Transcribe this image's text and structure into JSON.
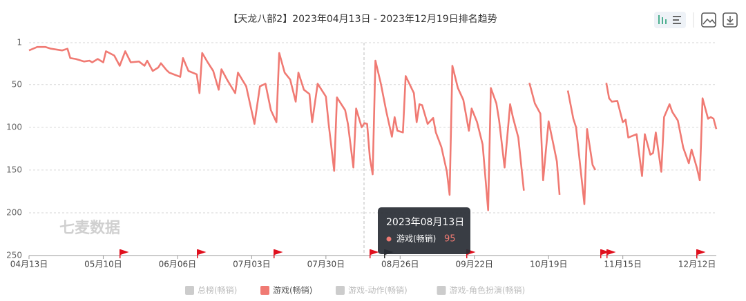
{
  "chart_data": {
    "type": "line",
    "title": "【天龙八部2】2023年04月13日 - 2023年12月19日排名趋势",
    "watermark": "七麦数据",
    "inverted_y": true,
    "grid": true,
    "ylim": [
      1,
      250
    ],
    "yticks": [
      1,
      50,
      100,
      150,
      200,
      250
    ],
    "xlim": [
      "2023-04-13",
      "2023-12-19"
    ],
    "xticks": [
      {
        "value": "2023-04-13",
        "label": "04月13日"
      },
      {
        "value": "2023-05-10",
        "label": "05月10日"
      },
      {
        "value": "2023-06-06",
        "label": "06月06日"
      },
      {
        "value": "2023-07-03",
        "label": "07月03日"
      },
      {
        "value": "2023-07-30",
        "label": "07月30日"
      },
      {
        "value": "2023-08-26",
        "label": "08月26日"
      },
      {
        "value": "2023-09-22",
        "label": "09月22日"
      },
      {
        "value": "2023-10-19",
        "label": "10月19日"
      },
      {
        "value": "2023-11-15",
        "label": "11月15日"
      },
      {
        "value": "2023-12-12",
        "label": "12月12日"
      }
    ],
    "x": [
      "2023-04-13",
      "2023-04-16",
      "2023-04-19",
      "2023-04-21",
      "2023-04-25",
      "2023-04-27",
      "2023-04-28",
      "2023-04-30",
      "2023-05-03",
      "2023-05-05",
      "2023-05-06",
      "2023-05-08",
      "2023-05-10",
      "2023-05-11",
      "2023-05-14",
      "2023-05-16",
      "2023-05-18",
      "2023-05-20",
      "2023-05-23",
      "2023-05-25",
      "2023-05-26",
      "2023-05-28",
      "2023-05-30",
      "2023-05-31",
      "2023-06-02",
      "2023-06-03",
      "2023-06-07",
      "2023-06-08",
      "2023-06-10",
      "2023-06-13",
      "2023-06-14",
      "2023-06-15",
      "2023-06-17",
      "2023-06-19",
      "2023-06-21",
      "2023-06-22",
      "2023-06-24",
      "2023-06-27",
      "2023-06-28",
      "2023-07-01",
      "2023-07-04",
      "2023-07-06",
      "2023-07-08",
      "2023-07-10",
      "2023-07-12",
      "2023-07-13",
      "2023-07-15",
      "2023-07-17",
      "2023-07-19",
      "2023-07-20",
      "2023-07-22",
      "2023-07-24",
      "2023-07-25",
      "2023-07-27",
      "2023-07-30",
      "2023-07-31",
      "2023-08-02",
      "2023-08-03",
      "2023-08-06",
      "2023-08-07",
      "2023-08-09",
      "2023-08-10",
      "2023-08-12",
      "2023-08-13",
      "2023-08-14",
      "2023-08-15",
      "2023-08-16",
      "2023-08-17",
      "2023-08-19",
      "2023-08-21",
      "2023-08-23",
      "2023-08-24",
      "2023-08-25",
      "2023-08-27",
      "2023-08-28",
      "2023-08-31",
      "2023-09-01",
      "2023-09-02",
      "2023-09-03",
      "2023-09-05",
      "2023-09-07",
      "2023-09-08",
      "2023-09-10",
      "2023-09-12",
      "2023-09-13",
      "2023-09-14",
      "2023-09-16",
      "2023-09-18",
      "2023-09-20",
      "2023-09-21",
      "2023-09-23",
      "2023-09-25",
      "2023-09-27",
      "2023-09-28",
      "2023-09-30",
      "2023-10-01",
      "2023-10-03",
      "2023-10-05",
      "2023-10-06",
      "2023-10-08",
      "2023-10-10",
      "2023-10-11",
      "2023-10-12",
      "2023-10-14",
      "2023-10-16",
      "2023-10-17",
      "2023-10-19",
      "2023-10-21",
      "2023-10-22",
      "2023-10-23",
      "2023-10-24",
      "2023-10-26",
      "2023-10-28",
      "2023-10-29",
      "2023-11-01",
      "2023-11-02",
      "2023-11-04",
      "2023-11-05",
      "2023-11-07",
      "2023-11-09",
      "2023-11-10",
      "2023-11-11",
      "2023-11-13",
      "2023-11-15",
      "2023-11-16",
      "2023-11-17",
      "2023-11-20",
      "2023-11-22",
      "2023-11-23",
      "2023-11-25",
      "2023-11-26",
      "2023-11-27",
      "2023-11-29",
      "2023-11-30",
      "2023-12-02",
      "2023-12-03",
      "2023-12-05",
      "2023-12-07",
      "2023-12-09",
      "2023-12-10",
      "2023-12-12",
      "2023-12-13",
      "2023-12-14",
      "2023-12-16",
      "2023-12-17",
      "2023-12-18",
      "2023-12-19"
    ],
    "series": [
      {
        "name": "游戏(畅销)",
        "color": "#f07a73",
        "values": [
          10,
          6,
          6,
          8,
          10,
          8,
          19,
          20,
          23,
          22,
          24,
          20,
          24,
          11,
          16,
          28,
          11,
          24,
          23,
          28,
          22,
          34,
          30,
          25,
          33,
          36,
          41,
          19,
          34,
          38,
          60,
          13,
          24,
          34,
          56,
          32,
          44,
          60,
          36,
          52,
          96,
          52,
          49,
          80,
          94,
          13,
          36,
          44,
          70,
          36,
          56,
          61,
          94,
          49,
          64,
          96,
          151,
          65,
          80,
          96,
          147,
          78,
          100,
          95,
          96,
          136,
          155,
          22,
          49,
          82,
          111,
          88,
          104,
          106,
          40,
          60,
          94,
          73,
          74,
          96,
          89,
          106,
          123,
          152,
          179,
          28,
          54,
          68,
          104,
          78,
          94,
          120,
          197,
          54,
          72,
          92,
          147,
          73,
          88,
          112,
          174,
          null,
          48,
          72,
          84,
          162,
          93,
          124,
          140,
          179,
          null,
          57,
          90,
          100,
          190,
          102,
          144,
          150,
          null,
          48,
          66,
          70,
          69,
          94,
          91,
          112,
          108,
          157,
          108,
          132,
          130,
          106,
          152,
          88,
          73,
          82,
          92,
          124,
          142,
          126,
          148,
          162,
          66,
          90,
          88,
          90,
          102
        ]
      }
    ],
    "legend": [
      {
        "name": "总榜(畅销)",
        "color": "#cccccc",
        "active": false
      },
      {
        "name": "游戏(畅销)",
        "color": "#f07a73",
        "active": true
      },
      {
        "name": "游戏-动作(畅销)",
        "color": "#cccccc",
        "active": false
      },
      {
        "name": "游戏-角色扮演(畅销)",
        "color": "#cccccc",
        "active": false
      }
    ],
    "tooltip": {
      "title": "2023年08月13日",
      "series": "游戏(畅销)",
      "value": 95
    }
  }
}
